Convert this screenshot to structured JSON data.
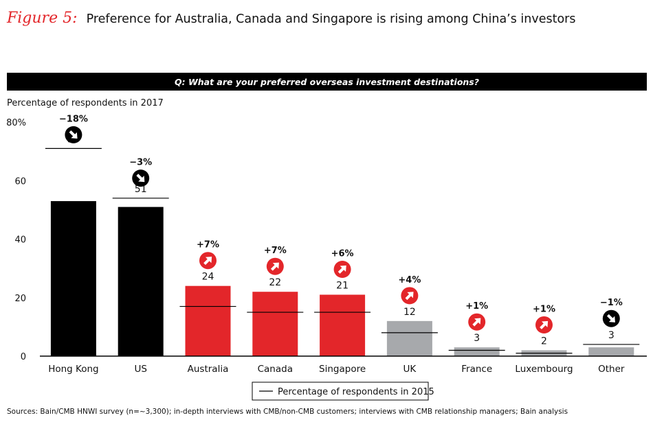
{
  "header": {
    "figure_label": "Figure 5:",
    "title": "Preference for Australia, Canada and Singapore is rising among China’s investors"
  },
  "question": "Q: What are your preferred overseas investment destinations?",
  "y_axis_label": "Percentage of respondents in 2017",
  "source": "Sources: Bain/CMB HNWI survey (n=~3,300); in-depth interviews with CMB/non-CMB customers; interviews with CMB relationship managers; Bain analysis",
  "legend": {
    "line_label": "Percentage of respondents in 2015"
  },
  "colors": {
    "black": "#000000",
    "red": "#e3262a",
    "gray": "#a7a9ac"
  },
  "chart_data": {
    "type": "bar",
    "ylim": [
      0,
      80
    ],
    "yticks": [
      0,
      20,
      40,
      60,
      80
    ],
    "ytick_labels": [
      "0",
      "20",
      "40",
      "60",
      "80%"
    ],
    "categories": [
      "Hong Kong",
      "US",
      "Australia",
      "Canada",
      "Singapore",
      "UK",
      "France",
      "Luxembourg",
      "Other"
    ],
    "values_2017": [
      53,
      51,
      24,
      22,
      21,
      12,
      3,
      2,
      3
    ],
    "values_2015": [
      71,
      54,
      17,
      15,
      15,
      8,
      2,
      1,
      4
    ],
    "changes": [
      "−18%",
      "−3%",
      "+7%",
      "+7%",
      "+6%",
      "+4%",
      "+1%",
      "+1%",
      "−1%"
    ],
    "directions": [
      "down",
      "down",
      "up",
      "up",
      "up",
      "up",
      "up",
      "up",
      "down"
    ],
    "bar_colors": [
      "black",
      "black",
      "red",
      "red",
      "red",
      "gray",
      "gray",
      "gray",
      "gray"
    ]
  }
}
